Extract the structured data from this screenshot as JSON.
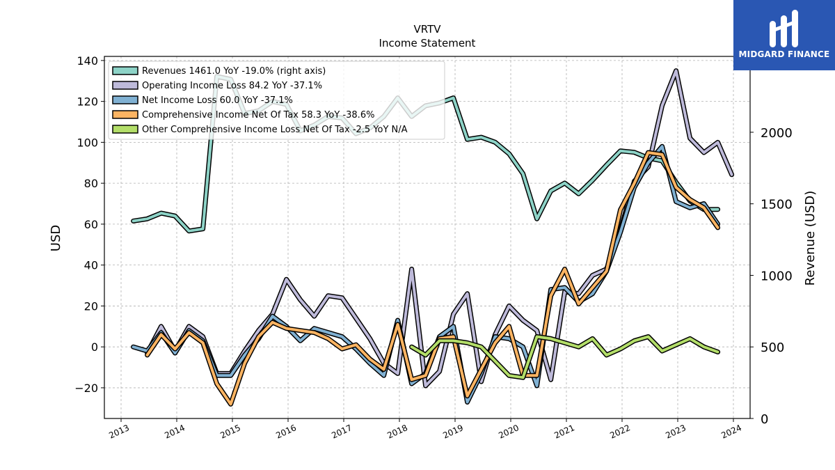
{
  "chart_data": {
    "type": "line",
    "title": "VRTV",
    "subtitle": "Income Statement",
    "ylabel": "USD",
    "ylabel_right": "Revenue (USD)",
    "ylim": [
      -35,
      142
    ],
    "ylim_right": [
      0,
      2530
    ],
    "yticks": [
      -20,
      0,
      20,
      40,
      60,
      80,
      100,
      120,
      140
    ],
    "yticks_right": [
      0,
      500,
      1000,
      1500,
      2000
    ],
    "xlim": [
      2012.7,
      2024.3
    ],
    "xticks": [
      "2013",
      "2014",
      "2015",
      "2016",
      "2017",
      "2018",
      "2019",
      "2020",
      "2021",
      "2022",
      "2023",
      "2024"
    ],
    "grid": true,
    "legend_placement": "top-left",
    "series": [
      {
        "name": "Revenues",
        "legend": "Revenues  1461.0 YoY -19.0% (right axis)",
        "axis": "right",
        "color": "#8dd3c7",
        "points": [
          [
            2013.22,
            1380
          ],
          [
            2013.47,
            1395
          ],
          [
            2013.72,
            1435
          ],
          [
            2013.97,
            1415
          ],
          [
            2014.22,
            1310
          ],
          [
            2014.47,
            1325
          ],
          [
            2014.72,
            2390
          ],
          [
            2014.97,
            2370
          ],
          [
            2015.22,
            2130
          ],
          [
            2015.47,
            2150
          ],
          [
            2015.72,
            2215
          ],
          [
            2015.97,
            2195
          ],
          [
            2016.22,
            2010
          ],
          [
            2016.47,
            2050
          ],
          [
            2016.72,
            2110
          ],
          [
            2016.97,
            2100
          ],
          [
            2017.22,
            1990
          ],
          [
            2017.47,
            2030
          ],
          [
            2017.72,
            2110
          ],
          [
            2017.97,
            2240
          ],
          [
            2018.22,
            2110
          ],
          [
            2018.47,
            2185
          ],
          [
            2018.72,
            2205
          ],
          [
            2018.97,
            2240
          ],
          [
            2019.22,
            1950
          ],
          [
            2019.47,
            1965
          ],
          [
            2019.72,
            1930
          ],
          [
            2019.97,
            1850
          ],
          [
            2020.22,
            1710
          ],
          [
            2020.47,
            1395
          ],
          [
            2020.72,
            1590
          ],
          [
            2020.97,
            1645
          ],
          [
            2021.22,
            1570
          ],
          [
            2021.47,
            1665
          ],
          [
            2021.72,
            1770
          ],
          [
            2021.97,
            1870
          ],
          [
            2022.22,
            1860
          ],
          [
            2022.47,
            1820
          ],
          [
            2022.72,
            1800
          ],
          [
            2022.97,
            1650
          ],
          [
            2023.22,
            1520
          ],
          [
            2023.47,
            1460
          ],
          [
            2023.72,
            1461
          ]
        ]
      },
      {
        "name": "Operating Income Loss",
        "legend": "Operating Income Loss  84.2 YoY -37.1%",
        "axis": "left",
        "color": "#bebada",
        "points": [
          [
            2013.47,
            -3
          ],
          [
            2013.72,
            10
          ],
          [
            2013.97,
            -2
          ],
          [
            2014.22,
            10
          ],
          [
            2014.47,
            5
          ],
          [
            2014.72,
            -13
          ],
          [
            2014.97,
            -13
          ],
          [
            2015.22,
            -2
          ],
          [
            2015.47,
            8
          ],
          [
            2015.72,
            16
          ],
          [
            2015.97,
            33
          ],
          [
            2016.22,
            23
          ],
          [
            2016.47,
            15
          ],
          [
            2016.72,
            25
          ],
          [
            2016.97,
            24
          ],
          [
            2017.22,
            14
          ],
          [
            2017.47,
            4
          ],
          [
            2017.72,
            -8
          ],
          [
            2017.97,
            -13
          ],
          [
            2018.22,
            38
          ],
          [
            2018.47,
            -19
          ],
          [
            2018.72,
            -12
          ],
          [
            2018.97,
            16
          ],
          [
            2019.22,
            26
          ],
          [
            2019.47,
            -17
          ],
          [
            2019.72,
            6
          ],
          [
            2019.97,
            20
          ],
          [
            2020.22,
            13
          ],
          [
            2020.47,
            8
          ],
          [
            2020.72,
            -16
          ],
          [
            2020.97,
            27
          ],
          [
            2021.22,
            26
          ],
          [
            2021.47,
            35
          ],
          [
            2021.72,
            38
          ],
          [
            2021.97,
            57
          ],
          [
            2022.22,
            81
          ],
          [
            2022.47,
            88
          ],
          [
            2022.72,
            118
          ],
          [
            2022.97,
            135
          ],
          [
            2023.22,
            102
          ],
          [
            2023.47,
            95
          ],
          [
            2023.72,
            100
          ],
          [
            2023.97,
            84.2
          ]
        ]
      },
      {
        "name": "Net Income Loss",
        "legend": "Net Income Loss  60.0 YoY -37.1%",
        "axis": "left",
        "color": "#80b1d3",
        "points": [
          [
            2013.22,
            0
          ],
          [
            2013.47,
            -2
          ],
          [
            2013.72,
            7
          ],
          [
            2013.97,
            -3
          ],
          [
            2014.22,
            8
          ],
          [
            2014.47,
            3
          ],
          [
            2014.72,
            -14
          ],
          [
            2014.97,
            -14
          ],
          [
            2015.22,
            -4
          ],
          [
            2015.47,
            4
          ],
          [
            2015.72,
            15
          ],
          [
            2015.97,
            10
          ],
          [
            2016.22,
            3
          ],
          [
            2016.47,
            9
          ],
          [
            2016.72,
            7
          ],
          [
            2016.97,
            5
          ],
          [
            2017.22,
            -1
          ],
          [
            2017.47,
            -8
          ],
          [
            2017.72,
            -14
          ],
          [
            2017.97,
            13
          ],
          [
            2018.22,
            -18
          ],
          [
            2018.47,
            -13
          ],
          [
            2018.72,
            5
          ],
          [
            2018.97,
            10
          ],
          [
            2019.22,
            -27
          ],
          [
            2019.47,
            -13
          ],
          [
            2019.72,
            5
          ],
          [
            2019.97,
            4
          ],
          [
            2020.22,
            0
          ],
          [
            2020.47,
            -19
          ],
          [
            2020.72,
            28
          ],
          [
            2020.97,
            29
          ],
          [
            2021.22,
            22
          ],
          [
            2021.47,
            26
          ],
          [
            2021.72,
            37
          ],
          [
            2021.97,
            56
          ],
          [
            2022.22,
            78
          ],
          [
            2022.47,
            90
          ],
          [
            2022.72,
            98
          ],
          [
            2022.97,
            71
          ],
          [
            2023.22,
            68
          ],
          [
            2023.47,
            70
          ],
          [
            2023.72,
            60.0
          ]
        ]
      },
      {
        "name": "Comprehensive Income Net Of Tax",
        "legend": "Comprehensive Income Net Of Tax  58.3 YoY -38.6%",
        "axis": "left",
        "color": "#fdb462",
        "points": [
          [
            2013.47,
            -4
          ],
          [
            2013.72,
            6
          ],
          [
            2013.97,
            -1
          ],
          [
            2014.22,
            7
          ],
          [
            2014.47,
            2
          ],
          [
            2014.72,
            -18
          ],
          [
            2014.97,
            -28
          ],
          [
            2015.22,
            -8
          ],
          [
            2015.47,
            5
          ],
          [
            2015.72,
            12
          ],
          [
            2015.97,
            9
          ],
          [
            2016.22,
            8
          ],
          [
            2016.47,
            7
          ],
          [
            2016.72,
            4
          ],
          [
            2016.97,
            -1
          ],
          [
            2017.22,
            1
          ],
          [
            2017.47,
            -6
          ],
          [
            2017.72,
            -11
          ],
          [
            2017.97,
            11
          ],
          [
            2018.22,
            -16
          ],
          [
            2018.47,
            -14
          ],
          [
            2018.72,
            4
          ],
          [
            2018.97,
            5
          ],
          [
            2019.22,
            -24
          ],
          [
            2019.47,
            -11
          ],
          [
            2019.72,
            2
          ],
          [
            2019.97,
            10
          ],
          [
            2020.22,
            -14
          ],
          [
            2020.47,
            -14
          ],
          [
            2020.72,
            25
          ],
          [
            2020.97,
            38
          ],
          [
            2021.22,
            21
          ],
          [
            2021.47,
            29
          ],
          [
            2021.72,
            37
          ],
          [
            2021.97,
            67
          ],
          [
            2022.22,
            80
          ],
          [
            2022.47,
            95
          ],
          [
            2022.72,
            94
          ],
          [
            2022.97,
            78
          ],
          [
            2023.22,
            72
          ],
          [
            2023.47,
            68
          ],
          [
            2023.72,
            58.3
          ]
        ]
      },
      {
        "name": "Other Comprehensive Income Loss Net Of Tax",
        "legend": "Other Comprehensive Income Loss Net Of Tax  -2.5 YoY N/A",
        "axis": "left",
        "color": "#b3de69",
        "points": [
          [
            2018.22,
            0
          ],
          [
            2018.47,
            -4
          ],
          [
            2018.72,
            3
          ],
          [
            2018.97,
            3
          ],
          [
            2019.22,
            2
          ],
          [
            2019.47,
            0
          ],
          [
            2019.72,
            -7
          ],
          [
            2019.97,
            -14
          ],
          [
            2020.22,
            -15
          ],
          [
            2020.47,
            5
          ],
          [
            2020.72,
            4
          ],
          [
            2020.97,
            2
          ],
          [
            2021.22,
            0
          ],
          [
            2021.47,
            4
          ],
          [
            2021.72,
            -4
          ],
          [
            2021.97,
            -1
          ],
          [
            2022.22,
            3
          ],
          [
            2022.47,
            5
          ],
          [
            2022.72,
            -2
          ],
          [
            2022.97,
            1
          ],
          [
            2023.22,
            4
          ],
          [
            2023.47,
            0
          ],
          [
            2023.72,
            -2.5
          ]
        ]
      }
    ]
  },
  "logo": {
    "text": "MIDGARD FINANCE",
    "icon": "midgard-logo-icon"
  }
}
